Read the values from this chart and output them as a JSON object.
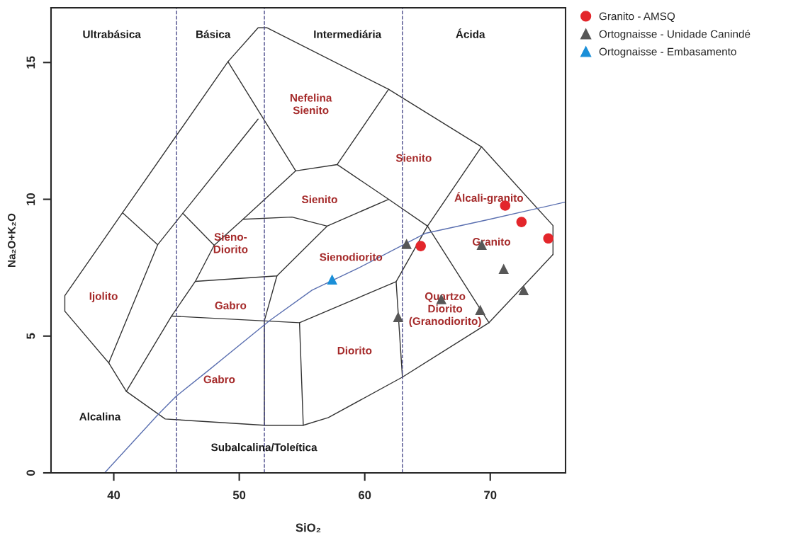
{
  "chart_data": {
    "type": "scatter",
    "xlabel": "SiO₂",
    "ylabel": "Na₂O+K₂O",
    "xlim": [
      35,
      76
    ],
    "ylim": [
      0,
      17
    ],
    "xticks": [
      40,
      50,
      60,
      70
    ],
    "yticks": [
      0,
      5,
      10,
      15
    ],
    "grid": false,
    "legend": "top right",
    "series": [
      {
        "type": "line",
        "color": "#333333",
        "marker": "none",
        "line_style": "solid",
        "x": [
          36.1,
          36.1,
          40.7,
          49.1,
          51.5,
          52.2,
          61.9,
          69.3,
          75.0,
          75.0
        ],
        "values": [
          5.91,
          6.48,
          9.51,
          15.03,
          16.27,
          16.27,
          14.02,
          11.92,
          9.04,
          7.98
        ]
      },
      {
        "type": "line",
        "color": "#333333",
        "marker": "none",
        "line_style": "solid",
        "x": [
          36.1,
          39.6,
          41.0,
          44.1,
          52.0,
          55.1,
          57.1,
          63.0,
          69.9,
          75.0
        ],
        "values": [
          5.91,
          4.02,
          2.98,
          1.97,
          1.74,
          1.74,
          2.02,
          3.5,
          5.49,
          7.98
        ]
      },
      {
        "type": "line",
        "color": "#333333",
        "marker": "none",
        "line_style": "solid",
        "x": [
          40.7,
          43.5
        ],
        "values": [
          9.51,
          8.34
        ]
      },
      {
        "type": "line",
        "color": "#333333",
        "marker": "none",
        "line_style": "solid",
        "x": [
          49.1,
          54.5,
          57.8,
          61.9
        ],
        "values": [
          15.03,
          11.04,
          11.27,
          14.02
        ]
      },
      {
        "type": "line",
        "color": "#333333",
        "marker": "none",
        "line_style": "solid",
        "x": [
          39.6,
          43.5,
          51.5
        ],
        "values": [
          4.02,
          8.34,
          12.93
        ]
      },
      {
        "type": "line",
        "color": "#333333",
        "marker": "none",
        "line_style": "solid",
        "x": [
          45.5,
          48.0
        ],
        "values": [
          9.49,
          8.32
        ]
      },
      {
        "type": "line",
        "color": "#333333",
        "marker": "none",
        "line_style": "solid",
        "x": [
          41.0,
          44.6,
          46.5,
          48.0,
          50.3,
          54.5
        ],
        "values": [
          2.98,
          5.73,
          7.0,
          8.32,
          9.27,
          11.04
        ]
      },
      {
        "type": "line",
        "color": "#333333",
        "marker": "none",
        "line_style": "solid",
        "x": [
          50.3,
          54.2,
          57.0,
          61.9,
          65.0,
          69.3
        ],
        "values": [
          9.27,
          9.35,
          9.02,
          10.0,
          9.02,
          11.92
        ]
      },
      {
        "type": "line",
        "color": "#333333",
        "marker": "none",
        "line_style": "solid",
        "x": [
          57.8,
          61.9
        ],
        "values": [
          11.27,
          10.0
        ]
      },
      {
        "type": "line",
        "color": "#333333",
        "marker": "none",
        "line_style": "solid",
        "x": [
          46.5,
          53.0,
          57.0
        ],
        "values": [
          7.0,
          7.2,
          9.02
        ]
      },
      {
        "type": "line",
        "color": "#333333",
        "marker": "none",
        "line_style": "solid",
        "x": [
          52.0,
          52.0,
          53.0
        ],
        "values": [
          1.74,
          5.56,
          7.2
        ]
      },
      {
        "type": "line",
        "color": "#333333",
        "marker": "none",
        "line_style": "solid",
        "x": [
          44.6,
          54.8,
          62.5,
          65.0,
          69.9
        ],
        "values": [
          5.73,
          5.49,
          6.99,
          9.02,
          5.49
        ]
      },
      {
        "type": "line",
        "color": "#333333",
        "marker": "none",
        "line_style": "solid",
        "x": [
          54.8,
          55.1
        ],
        "values": [
          5.49,
          1.74
        ]
      },
      {
        "type": "line",
        "color": "#333333",
        "marker": "none",
        "line_style": "solid",
        "x": [
          62.5,
          63.0
        ],
        "values": [
          6.99,
          3.5
        ]
      },
      {
        "type": "line",
        "color": "#5a6fb0",
        "marker": "none",
        "line_style": "solid",
        "x": [
          39.27,
          43.56,
          44.97,
          47.5,
          52.43,
          55.8,
          59.38,
          64.86,
          69.77,
          76.0
        ],
        "values": [
          0,
          2.15,
          2.8,
          3.73,
          5.57,
          6.68,
          7.46,
          8.76,
          9.25,
          9.9
        ]
      },
      {
        "name": "Granito - AMSQ",
        "color": "#e3262b",
        "marker": "circle",
        "x": [
          64.46,
          71.19,
          72.49,
          74.63
        ],
        "values": [
          8.29,
          9.77,
          9.17,
          8.57
        ]
      },
      {
        "name": "Ortognaisse - Unidade Canindé",
        "color": "#575757",
        "marker": "triangle",
        "x": [
          63.33,
          69.32,
          71.07,
          72.66,
          66.1,
          69.2,
          62.66
        ],
        "values": [
          8.37,
          8.34,
          7.46,
          6.68,
          6.35,
          5.96,
          5.7
        ]
      },
      {
        "name": "Ortognaisse - Embasamento",
        "color": "#1a8fd8",
        "marker": "triangle",
        "x": [
          57.4
        ],
        "values": [
          7.07
        ]
      }
    ],
    "ref_lines": [
      {
        "axis": "x",
        "value": 45,
        "label": null,
        "color": "#4a4a8a",
        "line_style": "dashed"
      },
      {
        "axis": "x",
        "value": 52,
        "label": null,
        "color": "#4a4a8a",
        "line_style": "dashed"
      },
      {
        "axis": "x",
        "value": 63,
        "label": null,
        "color": "#4a4a8a",
        "line_style": "dashed"
      }
    ],
    "annotations": [
      "Ultrabásica",
      "Básica",
      "Intermediária",
      "Ácida",
      "Nefelina\nSienito",
      "Sienito",
      "Sienito",
      "Álcali-granito",
      "Sieno-\nDiorito",
      "Sienodiorito",
      "Granito",
      "Ijolito",
      "Gabro",
      "Quartzo\nDiorito\n(Granodiorito)",
      "Diorito",
      "Gabro",
      "Alcalina",
      "Subalcalina/Toleítica"
    ]
  }
}
